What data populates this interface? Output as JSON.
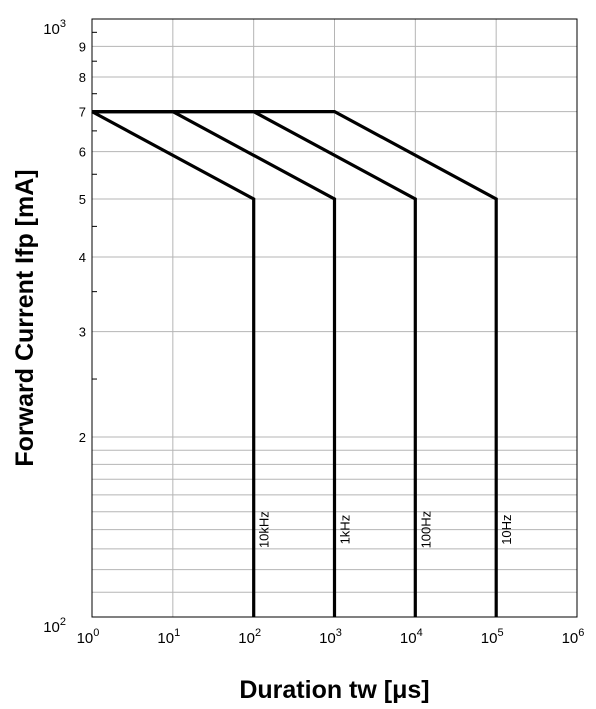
{
  "chart_data": {
    "type": "line",
    "title": "",
    "xlabel": "Duration tw [μs]",
    "ylabel": "Forward Current Ifp [mA]",
    "xscale": "log",
    "yscale": "log",
    "xlim": [
      1,
      1000000
    ],
    "ylim": [
      100,
      1000
    ],
    "grid": true,
    "x_ticks": [
      {
        "base": "10",
        "exp": "0"
      },
      {
        "base": "10",
        "exp": "1"
      },
      {
        "base": "10",
        "exp": "2"
      },
      {
        "base": "10",
        "exp": "3"
      },
      {
        "base": "10",
        "exp": "4"
      },
      {
        "base": "10",
        "exp": "5"
      },
      {
        "base": "10",
        "exp": "6"
      }
    ],
    "y_major_ticks": [
      {
        "base": "10",
        "exp": "2"
      },
      {
        "base": "10",
        "exp": "3"
      }
    ],
    "y_minor_tick_labels": [
      "2",
      "3",
      "4",
      "5",
      "6",
      "7",
      "8",
      "9"
    ],
    "series": [
      {
        "name": "10kHz",
        "x": [
          1,
          100,
          100
        ],
        "y": [
          700,
          500,
          100
        ]
      },
      {
        "name": "1kHz",
        "x": [
          1,
          10,
          1000,
          1000
        ],
        "y": [
          700,
          700,
          500,
          100
        ]
      },
      {
        "name": "100Hz",
        "x": [
          1,
          100,
          10000,
          10000
        ],
        "y": [
          700,
          700,
          500,
          100
        ]
      },
      {
        "name": "10Hz",
        "x": [
          1,
          1000,
          100000,
          100000
        ],
        "y": [
          700,
          700,
          500,
          100
        ]
      }
    ]
  }
}
